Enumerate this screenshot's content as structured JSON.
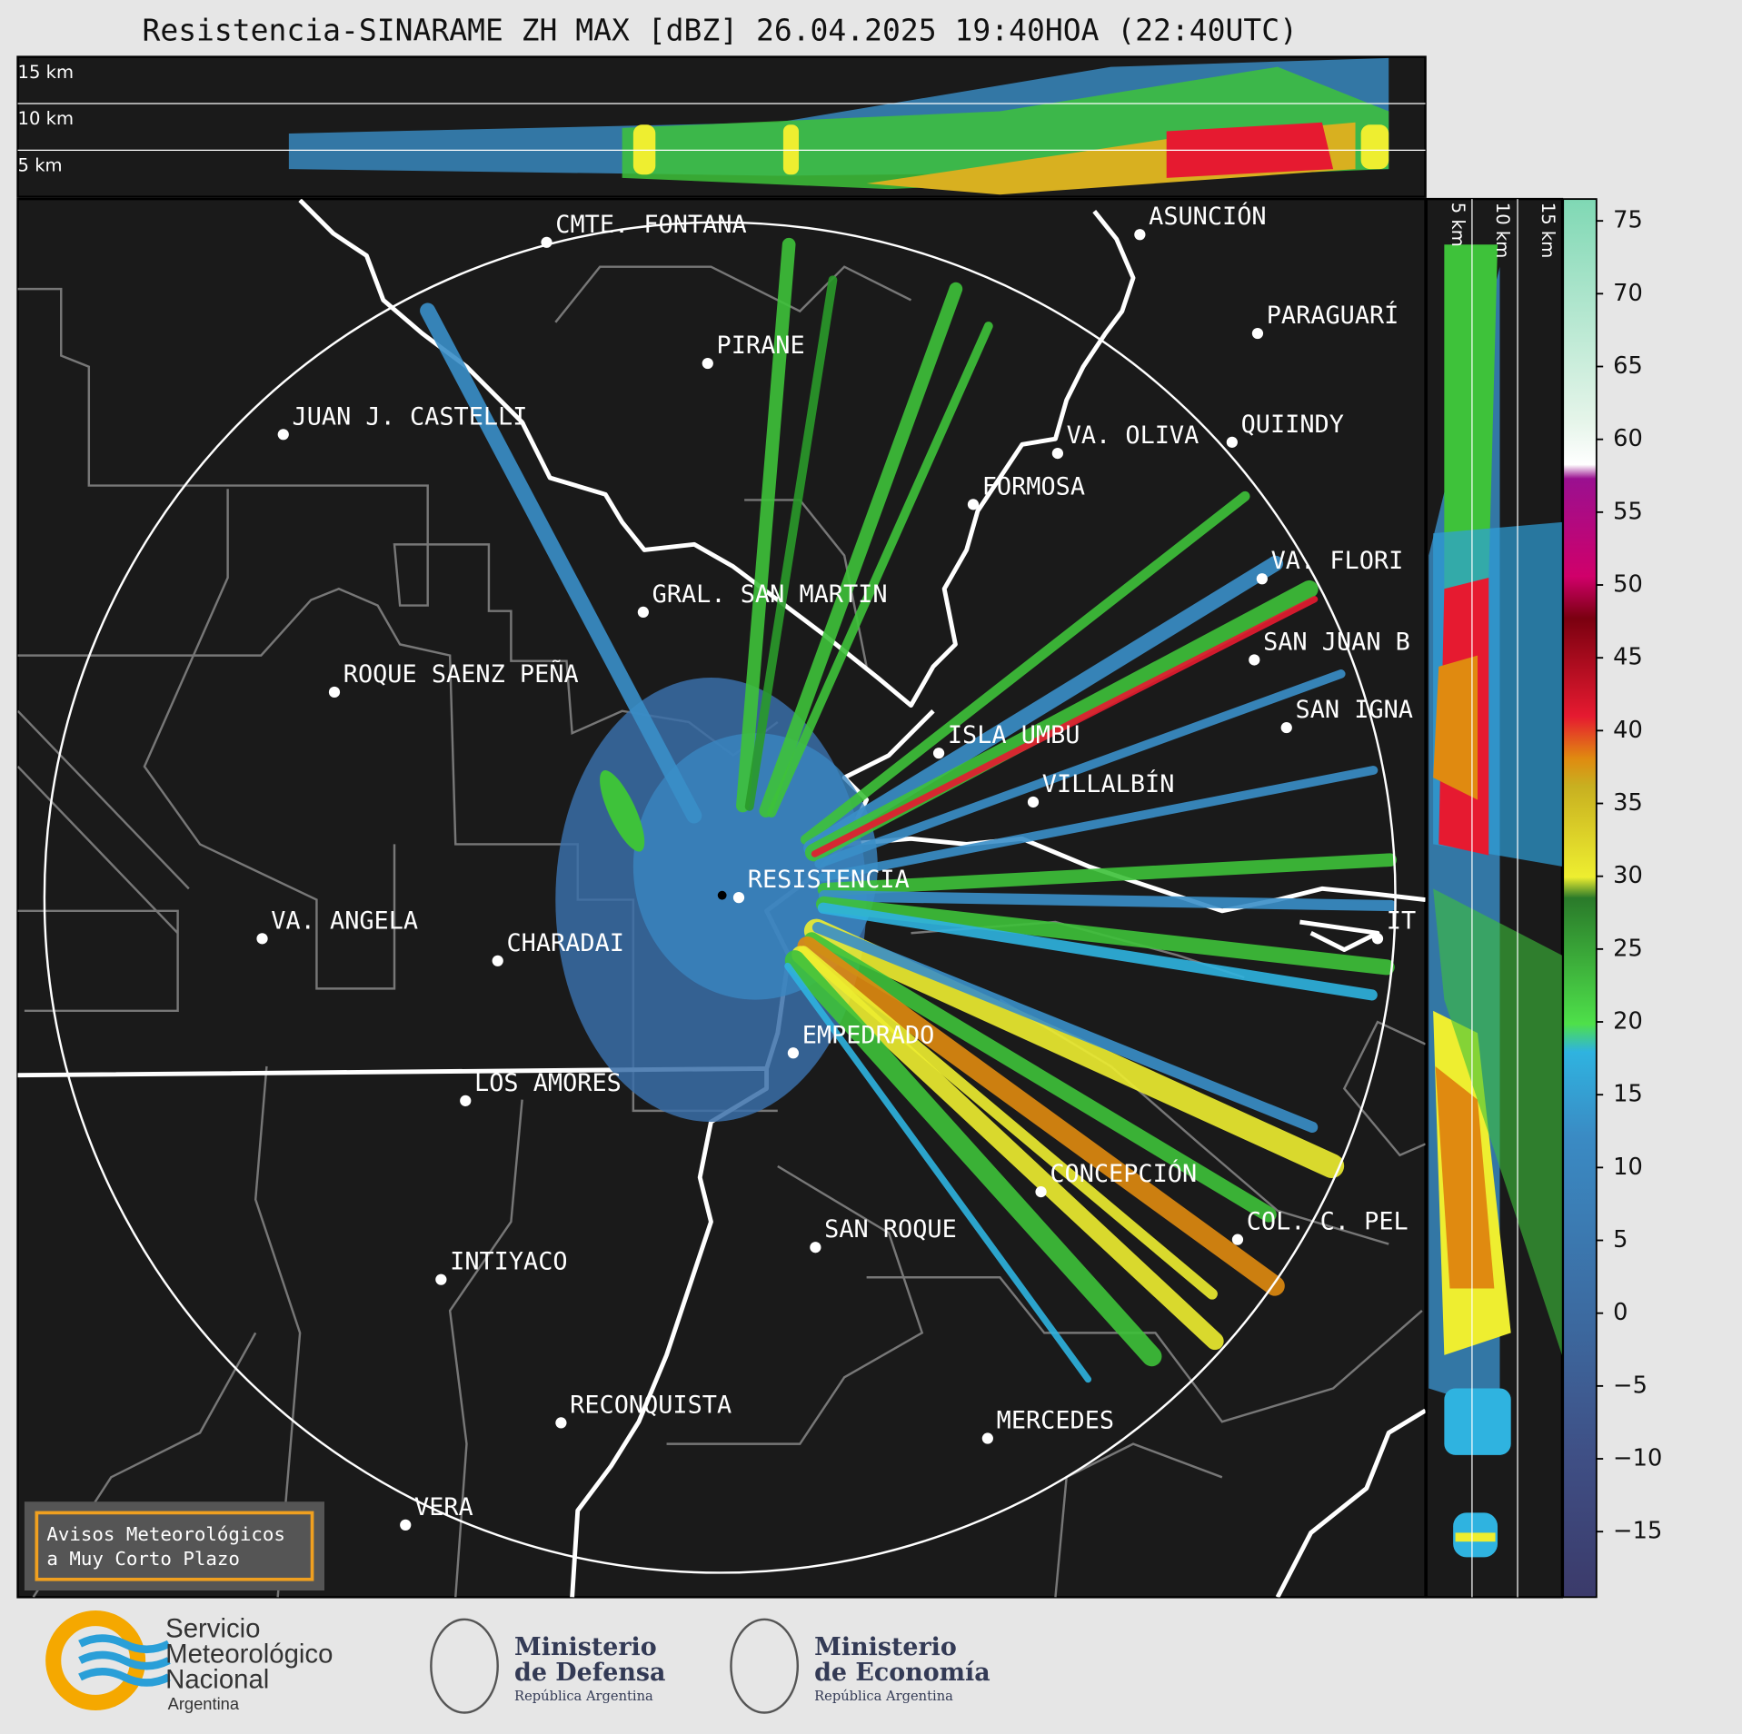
{
  "title": "Resistencia-SINARAME ZH MAX [dBZ] 26.04.2025 19:40HOA (22:40UTC)",
  "top_panel": {
    "height_labels": [
      "15 km",
      "10 km",
      "5 km"
    ]
  },
  "side_panel": {
    "height_labels": [
      "5 km",
      "10 km",
      "15 km"
    ]
  },
  "cities": [
    "CMTE. FONTANA",
    "PIRANE",
    "JUAN J. CASTELLI",
    "ASUNCIÓN",
    "PARAGUARÍ",
    "VA. OLIVA",
    "QUIINDY",
    "FORMOSA",
    "VA. FLORI",
    "GRAL. SAN MARTIN",
    "SAN JUAN B",
    "ROQUE SAENZ PEÑA",
    "SAN IGNA",
    "ISLA UMBU",
    "VILLALBÍN",
    "RESISTENCIA",
    "VA. ANGELA",
    "CHARADAI",
    "IT",
    "EMPEDRADO",
    "LOS AMORES",
    "CONCEPCIÓN",
    "COL. C. PEL",
    "SAN ROQUE",
    "INTIYACO",
    "RECONQUISTA",
    "MERCEDES",
    "VERA"
  ],
  "colorbar": {
    "lim": [
      -19.5,
      76.5
    ],
    "ticks": [
      {
        "value": -15,
        "label": "−15"
      },
      {
        "value": -10,
        "label": "−10"
      },
      {
        "value": -5,
        "label": "−5"
      },
      0,
      5,
      10,
      15,
      20,
      25,
      30,
      35,
      40,
      45,
      50,
      55,
      60,
      65,
      70,
      75
    ]
  },
  "notice": [
    "Avisos Meteorológicos",
    "a Muy Corto Plazo"
  ],
  "logos": {
    "smn": [
      "Servicio",
      "Meteorológico",
      "Nacional",
      "Argentina"
    ],
    "defensa": [
      "Ministerio",
      "de Defensa",
      "República Argentina"
    ],
    "economia": [
      "Ministerio",
      "de Economía",
      "República Argentina"
    ]
  }
}
